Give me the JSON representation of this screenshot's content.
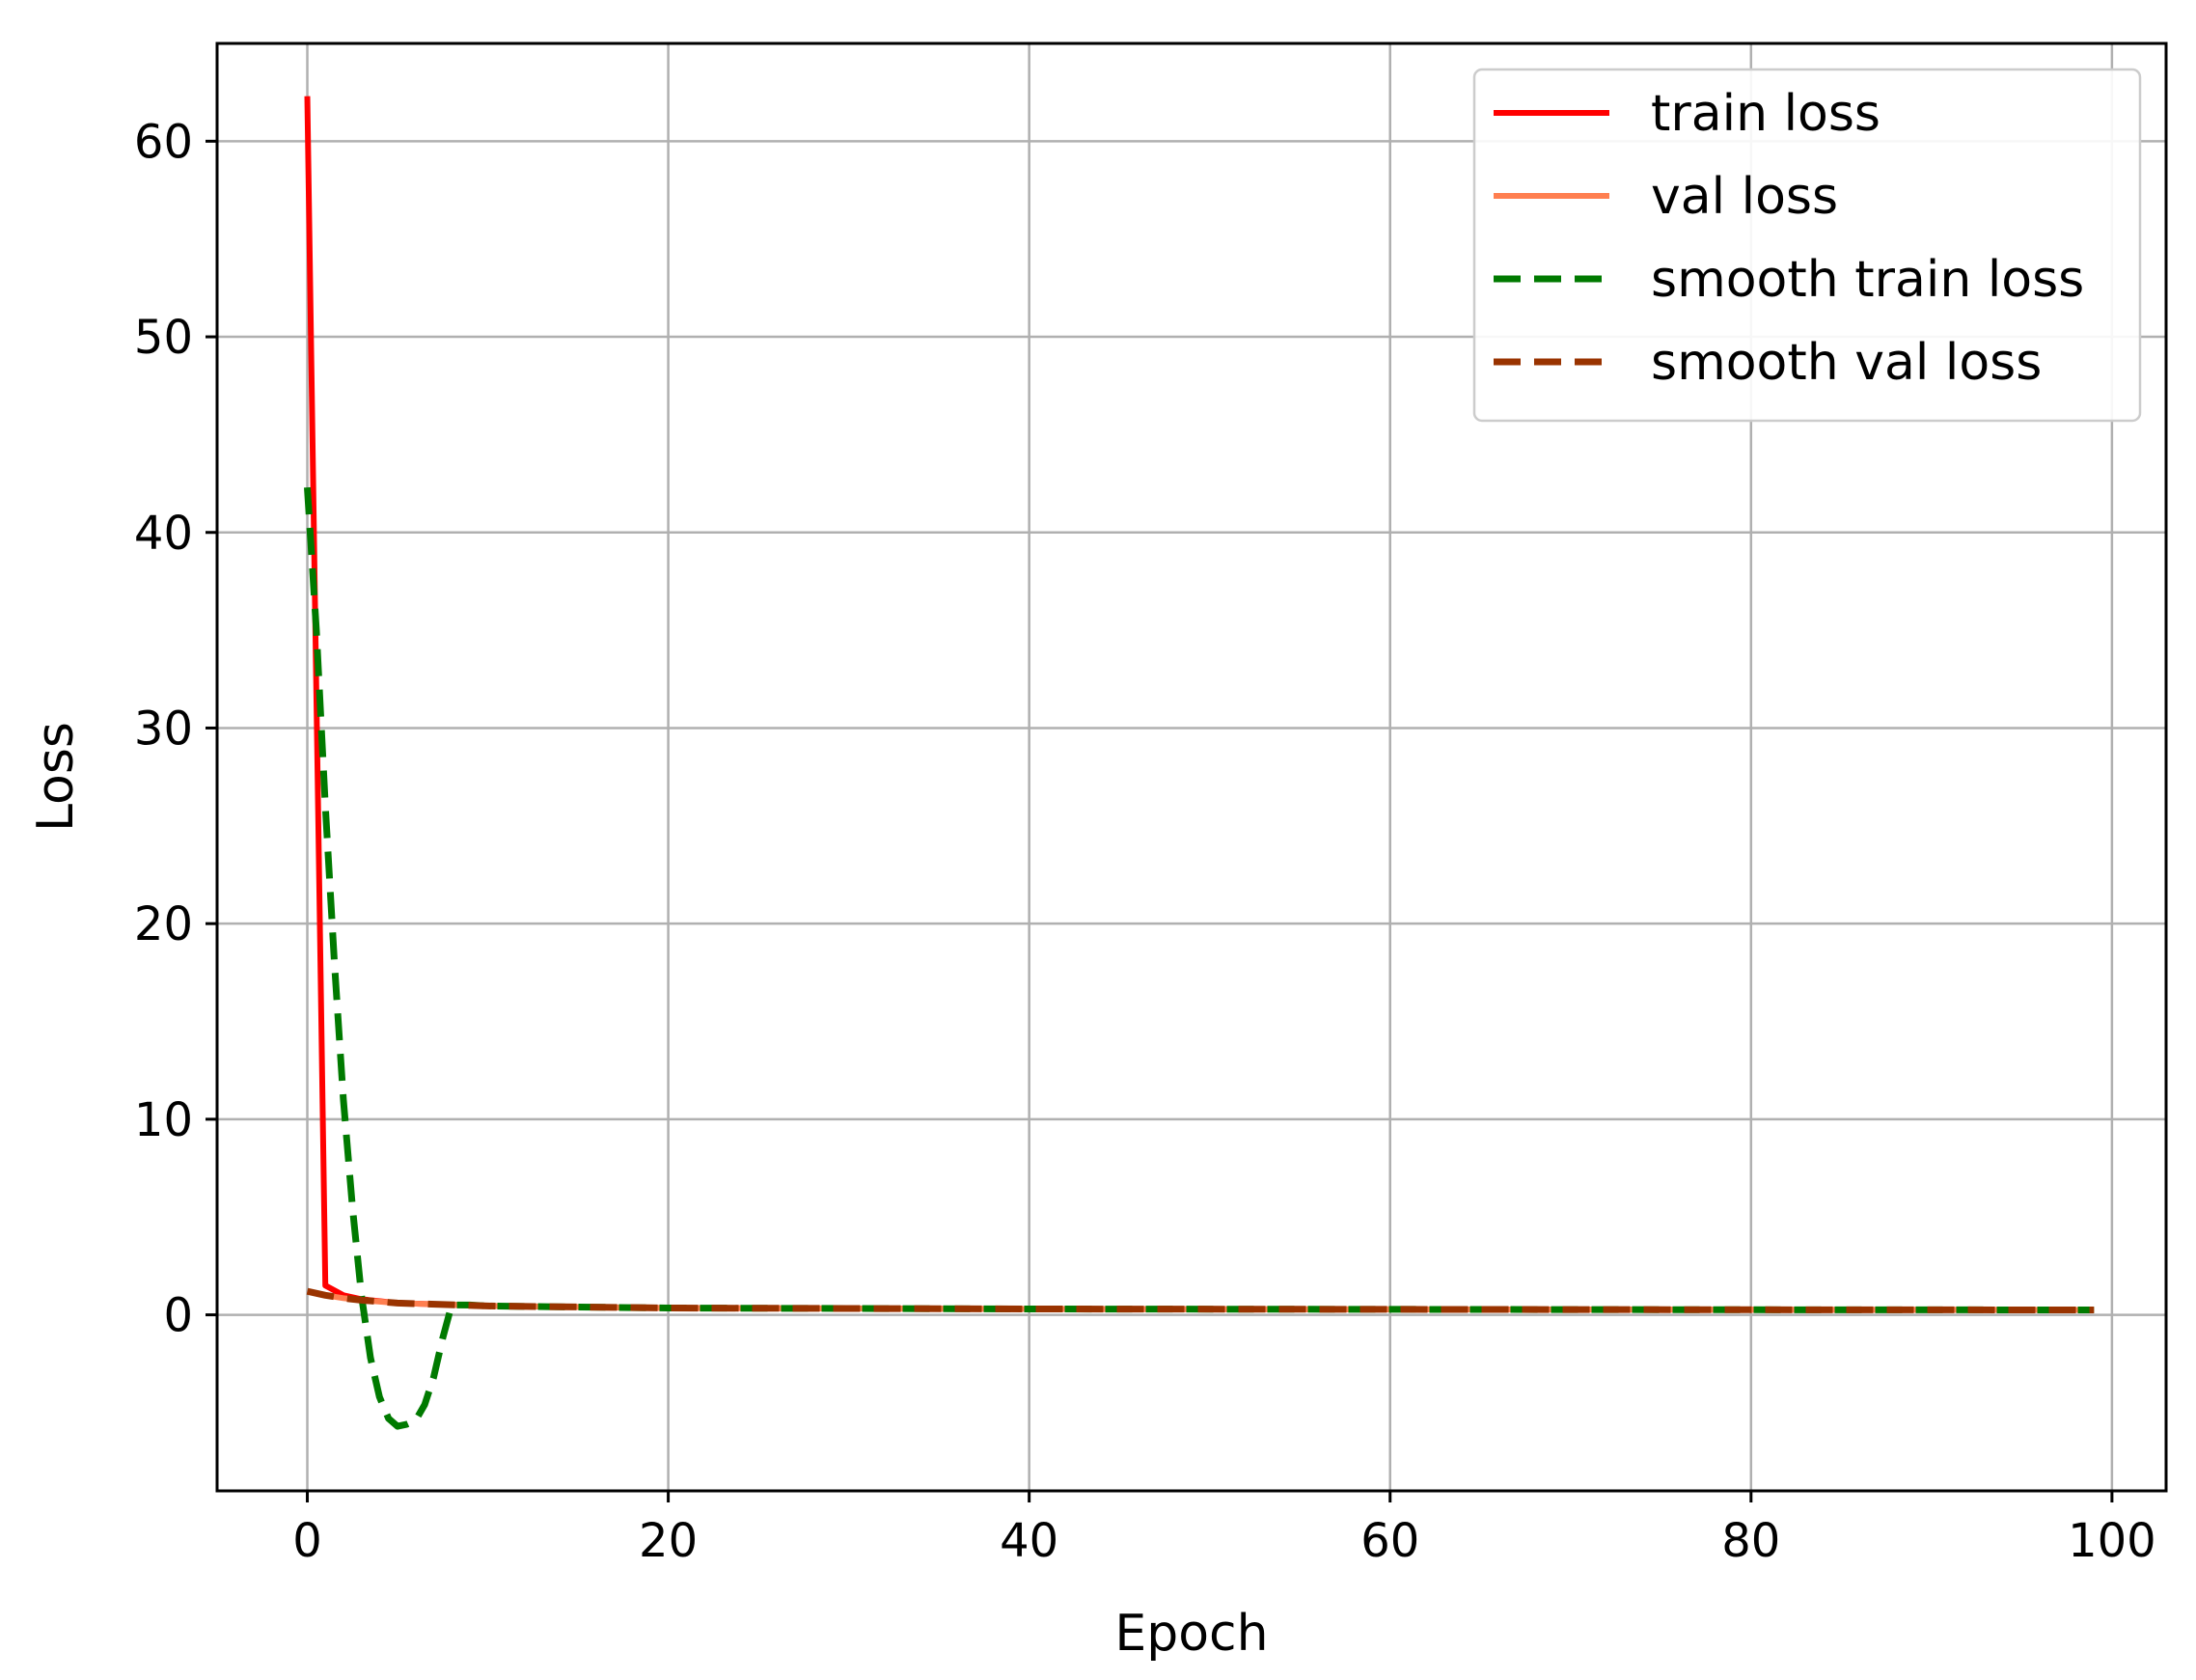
{
  "chart_data": {
    "type": "line",
    "title": "",
    "xlabel": "Epoch",
    "ylabel": "Loss",
    "xlim": [
      -5,
      103
    ],
    "ylim": [
      -9,
      65
    ],
    "xticks": [
      0,
      20,
      40,
      60,
      80,
      100
    ],
    "yticks": [
      0,
      10,
      20,
      30,
      40,
      50,
      60
    ],
    "grid": true,
    "legend_position": "top-right",
    "series": [
      {
        "name": "train loss",
        "color": "#ff0000",
        "dash": "solid",
        "x": [
          0,
          1,
          2,
          3,
          5,
          10,
          20,
          40,
          60,
          80,
          99
        ],
        "y": [
          62.3,
          1.5,
          1.0,
          0.8,
          0.6,
          0.45,
          0.35,
          0.3,
          0.28,
          0.26,
          0.25
        ]
      },
      {
        "name": "val loss",
        "color": "#ff7f50",
        "dash": "solid",
        "x": [
          0,
          1,
          2,
          3,
          5,
          10,
          20,
          40,
          60,
          80,
          99
        ],
        "y": [
          1.2,
          1.0,
          0.85,
          0.75,
          0.6,
          0.45,
          0.35,
          0.3,
          0.28,
          0.26,
          0.25
        ]
      },
      {
        "name": "smooth train loss",
        "color": "#007a00",
        "dash": "dashed",
        "x": [
          0,
          0.5,
          1,
          1.5,
          2,
          2.5,
          3,
          3.5,
          4,
          4.5,
          5,
          5.5,
          6,
          6.5,
          7,
          7.5,
          8,
          9,
          10,
          15,
          20,
          40,
          60,
          80,
          99
        ],
        "y": [
          42.3,
          35,
          26,
          18,
          11,
          5.5,
          1.0,
          -2.2,
          -4.2,
          -5.3,
          -5.7,
          -5.6,
          -5.4,
          -4.6,
          -3.2,
          -1.2,
          0.5,
          0.5,
          0.45,
          0.4,
          0.35,
          0.3,
          0.28,
          0.26,
          0.25
        ]
      },
      {
        "name": "smooth val loss",
        "color": "#993300",
        "dash": "dashed",
        "x": [
          0,
          1,
          2,
          3,
          5,
          10,
          20,
          40,
          60,
          80,
          99
        ],
        "y": [
          1.2,
          1.0,
          0.85,
          0.75,
          0.6,
          0.45,
          0.35,
          0.3,
          0.28,
          0.26,
          0.25
        ]
      }
    ]
  }
}
